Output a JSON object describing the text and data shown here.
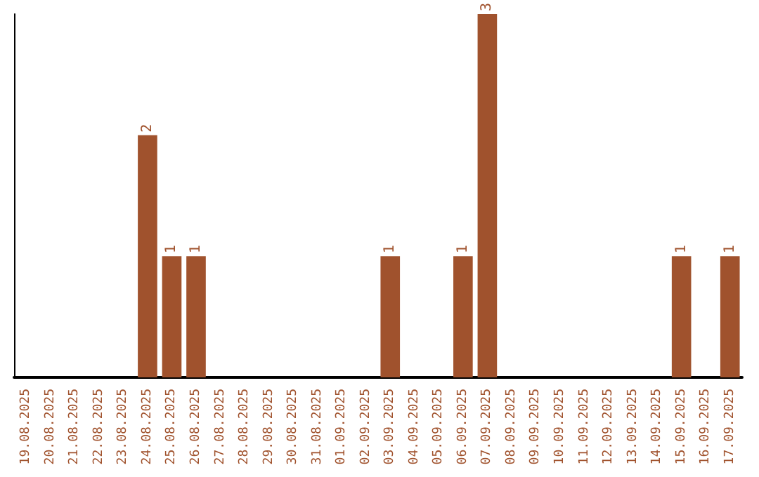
{
  "chart_data": {
    "type": "bar",
    "categories": [
      "19.08.2025",
      "20.08.2025",
      "21.08.2025",
      "22.08.2025",
      "23.08.2025",
      "24.08.2025",
      "25.08.2025",
      "26.08.2025",
      "27.08.2025",
      "28.08.2025",
      "29.08.2025",
      "30.08.2025",
      "31.08.2025",
      "01.09.2025",
      "02.09.2025",
      "03.09.2025",
      "04.09.2025",
      "05.09.2025",
      "06.09.2025",
      "07.09.2025",
      "08.09.2025",
      "09.09.2025",
      "10.09.2025",
      "11.09.2025",
      "12.09.2025",
      "13.09.2025",
      "14.09.2025",
      "15.09.2025",
      "16.09.2025",
      "17.09.2025"
    ],
    "values": [
      0,
      0,
      0,
      0,
      0,
      2,
      1,
      1,
      0,
      0,
      0,
      0,
      0,
      0,
      0,
      1,
      0,
      0,
      1,
      3,
      0,
      0,
      0,
      0,
      0,
      0,
      0,
      1,
      0,
      1
    ],
    "value_labels": [
      null,
      null,
      null,
      null,
      null,
      "2",
      "1",
      "1",
      null,
      null,
      null,
      null,
      null,
      null,
      null,
      "1",
      null,
      null,
      "1",
      "3",
      null,
      null,
      null,
      null,
      null,
      null,
      null,
      "1",
      null,
      "1"
    ],
    "color": "#a0522d",
    "grid": false,
    "tick_labels": "x"
  }
}
